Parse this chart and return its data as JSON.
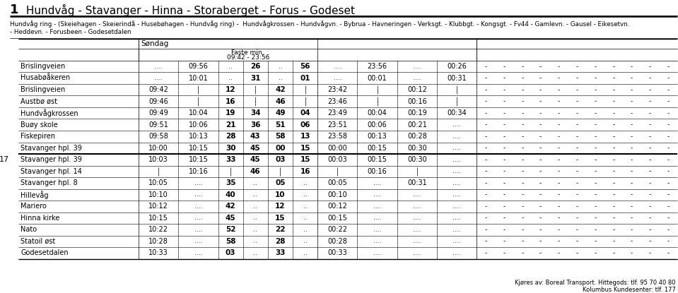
{
  "title_num": "1",
  "title_text": " Hundvåg - Stavanger - Hinna - Storaberget - Forus - Godeset",
  "subtitle_line1": "Hundvåg ring - (Skeiehagen - Skeierindå - Husebøhagen - Hundvåg ring) -  Hundvågkrossen - Hundvågvn. - Bybrua - Havneringen - Verksgt. - Klubbgt. - Kongsgt. - Fv44 - Gamlevn. - Gausel - Eikesetvn.",
  "subtitle_line2": "- Heddevn. - Forusbeen - Godesetdalen",
  "day_header": "Søndag",
  "col_header1": "Faste min.",
  "col_header2": "09:42 - 23:56",
  "route_number": "17",
  "footer1": "Kjøres av: Boreal Transport. Hittegods: tlf. 95 70 40 80",
  "footer2": "Kolumbus Kundesenter: tlf. 177",
  "rows_part1": [
    [
      "Brislingveien",
      "....",
      "09:56",
      "..",
      "26",
      "..",
      "56",
      "....",
      "23:56",
      "....",
      "00:26",
      "-",
      "-",
      "-",
      "-",
      "-",
      "-",
      "-",
      "-",
      "-",
      "-",
      "-"
    ],
    [
      "Husabøåkeren",
      "....",
      "10:01",
      "..",
      "31",
      "..",
      "01",
      "....",
      "00:01",
      "....",
      "00:31",
      "-",
      "-",
      "-",
      "-",
      "-",
      "-",
      "-",
      "-",
      "-",
      "-",
      "-"
    ],
    [
      "Brislingveien",
      "09:42",
      "|",
      "12",
      "|",
      "42",
      "|",
      "23:42",
      "|",
      "00:12",
      "|",
      "-",
      "-",
      "-",
      "-",
      "-",
      "-",
      "-",
      "-",
      "-",
      "-",
      "-"
    ],
    [
      "Austbø øst",
      "09:46",
      "|",
      "16",
      "|",
      "46",
      "|",
      "23:46",
      "|",
      "00:16",
      "|",
      "-",
      "-",
      "-",
      "-",
      "-",
      "-",
      "-",
      "-",
      "-",
      "-",
      "-"
    ],
    [
      "Hundvågkrossen",
      "09:49",
      "10:04",
      "19",
      "34",
      "49",
      "04",
      "23:49",
      "00:04",
      "00:19",
      "00:34",
      "-",
      "-",
      "-",
      "-",
      "-",
      "-",
      "-",
      "-",
      "-",
      "-",
      "-"
    ],
    [
      "Buøy skole",
      "09:51",
      "10:06",
      "21",
      "36",
      "51",
      "06",
      "23:51",
      "00:06",
      "00:21",
      "....",
      "-",
      "-",
      "-",
      "-",
      "-",
      "-",
      "-",
      "-",
      "-",
      "-",
      "-"
    ],
    [
      "Fiskepiren",
      "09:58",
      "10:13",
      "28",
      "43",
      "58",
      "13",
      "23:58",
      "00:13",
      "00:28",
      "....",
      "-",
      "-",
      "-",
      "-",
      "-",
      "-",
      "-",
      "-",
      "-",
      "-",
      "-"
    ],
    [
      "Stavanger hpl. 39",
      "10:00",
      "10:15",
      "30",
      "45",
      "00",
      "15",
      "00:00",
      "00:15",
      "00:30",
      "....",
      "-",
      "-",
      "-",
      "-",
      "-",
      "-",
      "-",
      "-",
      "-",
      "-",
      "-"
    ]
  ],
  "rows_part2": [
    [
      "Stavanger hpl. 39",
      "10:03",
      "10:15",
      "33",
      "45",
      "03",
      "15",
      "00:03",
      "00:15",
      "00:30",
      "....",
      "-",
      "-",
      "-",
      "-",
      "-",
      "-",
      "-",
      "-",
      "-",
      "-",
      "-"
    ],
    [
      "Stavanger hpl. 14",
      "|",
      "10:16",
      "|",
      "46",
      "|",
      "16",
      "|",
      "00:16",
      "|",
      "....",
      "-",
      "-",
      "-",
      "-",
      "-",
      "-",
      "-",
      "-",
      "-",
      "-",
      "-"
    ],
    [
      "Stavanger hpl. 8",
      "10:05",
      "....",
      "35",
      "..",
      "05",
      "..",
      "00:05",
      "....",
      "00:31",
      "....",
      "-",
      "-",
      "-",
      "-",
      "-",
      "-",
      "-",
      "-",
      "-",
      "-",
      "-"
    ],
    [
      "Hillevåg",
      "10:10",
      "....",
      "40",
      "..",
      "10",
      "..",
      "00:10",
      "....",
      "....",
      "....",
      "-",
      "-",
      "-",
      "-",
      "-",
      "-",
      "-",
      "-",
      "-",
      "-",
      "-"
    ],
    [
      "Mariero",
      "10:12",
      "....",
      "42",
      "..",
      "12",
      "..",
      "00:12",
      "....",
      "....",
      "....",
      "-",
      "-",
      "-",
      "-",
      "-",
      "-",
      "-",
      "-",
      "-",
      "-",
      "-"
    ],
    [
      "Hinna kirke",
      "10:15",
      "....",
      "45",
      "..",
      "15",
      "..",
      "00:15",
      "....",
      "....",
      "....",
      "-",
      "-",
      "-",
      "-",
      "-",
      "-",
      "-",
      "-",
      "-",
      "-",
      "-"
    ],
    [
      "Nato",
      "10:22",
      "....",
      "52",
      "..",
      "22",
      "..",
      "00:22",
      "....",
      "....",
      "....",
      "-",
      "-",
      "-",
      "-",
      "-",
      "-",
      "-",
      "-",
      "-",
      "-",
      "-"
    ],
    [
      "Statoil øst",
      "10:28",
      "....",
      "58",
      "..",
      "28",
      "..",
      "00:28",
      "....",
      "....",
      "....",
      "-",
      "-",
      "-",
      "-",
      "-",
      "-",
      "-",
      "-",
      "-",
      "-",
      "-"
    ],
    [
      "Godesetdalen",
      "10:33",
      "....",
      "03",
      "..",
      "33",
      "..",
      "00:33",
      "....",
      "....",
      "....",
      "-",
      "-",
      "-",
      "-",
      "-",
      "-",
      "-",
      "-",
      "-",
      "-",
      "-"
    ]
  ],
  "col_widths_rel": [
    1.45,
    0.48,
    0.48,
    0.3,
    0.3,
    0.3,
    0.3,
    0.48,
    0.48,
    0.48,
    0.48,
    0.22,
    0.22,
    0.22,
    0.22,
    0.22,
    0.22,
    0.22,
    0.22,
    0.22,
    0.22,
    0.22
  ]
}
